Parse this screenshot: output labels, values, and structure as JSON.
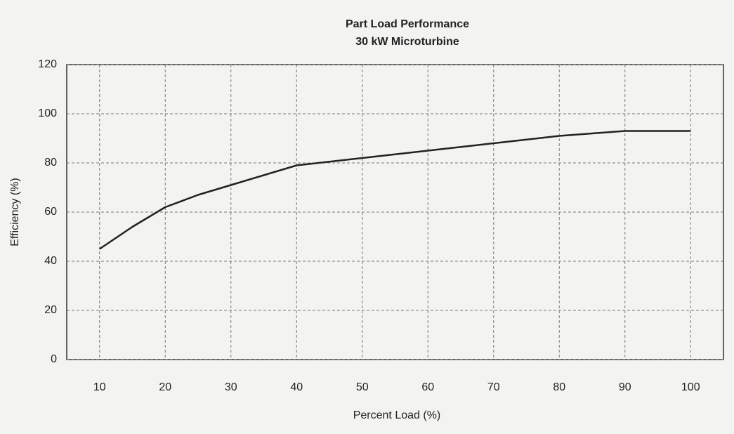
{
  "chart_data": {
    "type": "line",
    "title": "Part Load Performance",
    "subtitle": "30 kW Microturbine",
    "x_label": "Percent Load (%)",
    "y_label": "Efficiency (%)",
    "x": [
      10,
      15,
      20,
      25,
      30,
      35,
      40,
      50,
      60,
      70,
      80,
      90,
      100
    ],
    "series": [
      {
        "name": "Efficiency",
        "color": "#222222",
        "values": [
          45,
          54,
          62,
          67,
          71,
          75,
          79,
          82,
          85,
          88,
          91,
          93,
          93
        ]
      }
    ],
    "xlim": [
      5,
      105
    ],
    "xticks": [
      10,
      20,
      30,
      40,
      50,
      60,
      70,
      80,
      90,
      100
    ],
    "ylim": [
      0,
      120
    ],
    "yticks": [
      0,
      20,
      40,
      60,
      80,
      100,
      120
    ],
    "grid": true,
    "legend": false
  }
}
